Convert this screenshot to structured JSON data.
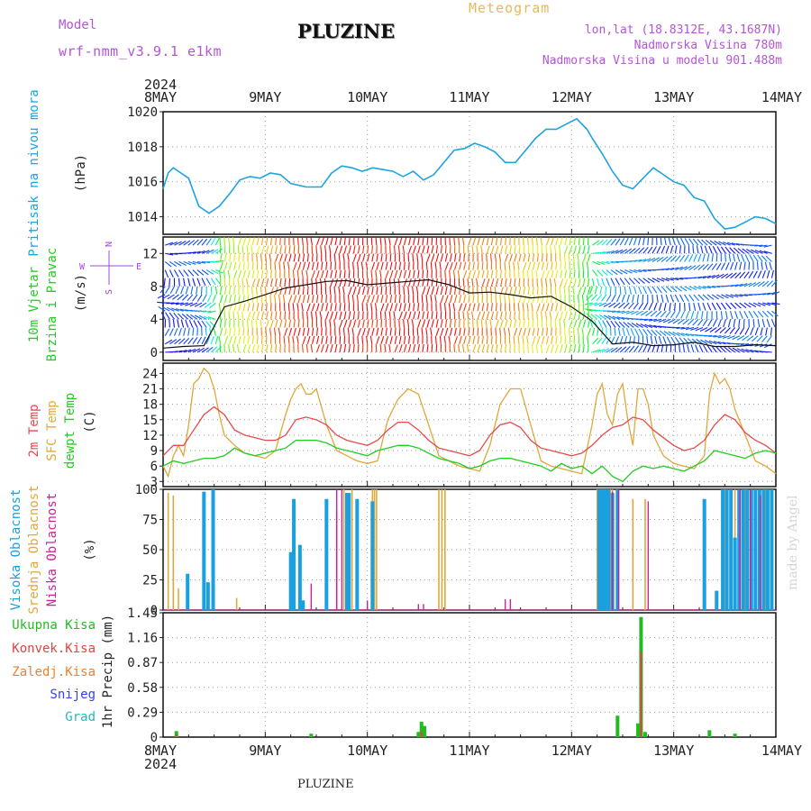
{
  "header": {
    "model_label": "Model",
    "model_value": "wrf-nmm_v3.9.1  e1km",
    "station": "PLUZINE",
    "meteogram": "Meteogram",
    "coords": "lon,lat (18.8312E, 43.1687N)",
    "elev": "Nadmorska Visina 780m",
    "elev_model": "Nadmorska Visina u modelu 901.488m",
    "footer_station": "PLUZINE",
    "watermark": "made by Angel"
  },
  "colors": {
    "pressure": "#1ca3e0",
    "wind_label": "#22cc22",
    "dir_label": "#aa44dd",
    "temp2m": "#e84a4a",
    "sfc": "#e0a83a",
    "dew": "#22cc22",
    "high": "#1a9fe0",
    "mid": "#e0a83a",
    "low": "#cc2299",
    "total": "#22bb22",
    "conv": "#e84040",
    "frozen": "#ef8030",
    "snow": "#3344ee",
    "hail": "#22bbbb"
  },
  "chart_data": {
    "type": "line",
    "time_axis": {
      "year": "2024",
      "ticks": [
        "8MAY",
        "9MAY",
        "10MAY",
        "11MAY",
        "12MAY",
        "13MAY",
        "14MAY"
      ]
    },
    "panels": [
      {
        "id": "pressure",
        "ylabel_lines": [
          "Pritisak na nivou mora"
        ],
        "unit": "(hPa)",
        "ylim": [
          1013,
          1020
        ],
        "yticks": [
          1014,
          1016,
          1018,
          1020
        ],
        "series": [
          {
            "name": "Pritisak",
            "x": [
              0,
              0.05,
              0.1,
              0.15,
              0.25,
              0.35,
              0.45,
              0.55,
              0.65,
              0.75,
              0.85,
              0.95,
              1.05,
              1.15,
              1.25,
              1.4,
              1.55,
              1.65,
              1.75,
              1.85,
              1.95,
              2.05,
              2.15,
              2.25,
              2.35,
              2.45,
              2.55,
              2.65,
              2.75,
              2.85,
              2.95,
              3.05,
              3.15,
              3.25,
              3.35,
              3.45,
              3.55,
              3.65,
              3.75,
              3.85,
              3.95,
              4.05,
              4.15,
              4.2,
              4.3,
              4.4,
              4.5,
              4.6,
              4.7,
              4.8,
              4.9,
              5.0,
              5.1,
              5.2,
              5.3,
              5.4,
              5.5,
              5.6,
              5.7,
              5.8,
              5.9,
              6.0
            ],
            "values": [
              1015.6,
              1016.5,
              1016.8,
              1016.6,
              1016.2,
              1014.6,
              1014.2,
              1014.6,
              1015.3,
              1016.1,
              1016.3,
              1016.2,
              1016.5,
              1016.4,
              1015.9,
              1015.7,
              1015.7,
              1016.5,
              1016.9,
              1016.8,
              1016.6,
              1016.8,
              1016.7,
              1016.6,
              1016.3,
              1016.6,
              1016.1,
              1016.4,
              1017.1,
              1017.8,
              1017.9,
              1018.2,
              1018.0,
              1017.7,
              1017.1,
              1017.1,
              1017.8,
              1018.5,
              1019.0,
              1019.0,
              1019.3,
              1019.6,
              1019.0,
              1018.5,
              1017.6,
              1016.6,
              1015.8,
              1015.6,
              1016.2,
              1016.8,
              1016.4,
              1016.0,
              1015.8,
              1015.1,
              1014.9,
              1013.9,
              1013.3,
              1013.4,
              1013.7,
              1014.0,
              1013.9,
              1013.6
            ]
          }
        ]
      },
      {
        "id": "wind",
        "ylabel_lines": [
          "10m Vjetar",
          "Brzina i Pravac"
        ],
        "unit": "(m/s)",
        "ylim": [
          -1,
          14
        ],
        "yticks": [
          0,
          4,
          8,
          12
        ],
        "compass": {
          "n": "N",
          "s": "S",
          "w": "W",
          "e": "E"
        },
        "series": [
          {
            "name": "Brzina",
            "x": [
              0,
              0.2,
              0.4,
              0.6,
              0.8,
              1.0,
              1.2,
              1.4,
              1.6,
              1.8,
              2.0,
              2.2,
              2.4,
              2.6,
              2.8,
              3.0,
              3.2,
              3.4,
              3.6,
              3.8,
              4.0,
              4.2,
              4.4,
              4.6,
              4.8,
              5.0,
              5.2,
              5.4,
              5.6,
              5.8,
              6.0
            ],
            "values": [
              0.5,
              0.7,
              0.8,
              5.5,
              6.2,
              7.0,
              7.8,
              8.2,
              8.6,
              8.7,
              8.2,
              8.4,
              8.6,
              8.8,
              8.2,
              7.2,
              7.3,
              7.0,
              6.6,
              6.8,
              5.5,
              3.8,
              1.0,
              1.2,
              0.8,
              0.9,
              1.2,
              0.7,
              0.7,
              0.9,
              0.8
            ]
          }
        ]
      },
      {
        "id": "temp",
        "ylabel_lines": [
          "2m Temp",
          "SFC Temp",
          "dewpt Temp"
        ],
        "unit": "(C)",
        "ylim": [
          2,
          26
        ],
        "yticks": [
          3,
          6,
          9,
          12,
          15,
          18,
          21,
          24
        ],
        "series": [
          {
            "name": "2m Temp",
            "x": [
              0,
              0.1,
              0.2,
              0.3,
              0.4,
              0.5,
              0.6,
              0.7,
              0.8,
              0.9,
              1.0,
              1.1,
              1.2,
              1.3,
              1.4,
              1.5,
              1.6,
              1.7,
              1.8,
              1.9,
              2.0,
              2.1,
              2.2,
              2.3,
              2.4,
              2.5,
              2.6,
              2.7,
              2.8,
              2.9,
              3.0,
              3.1,
              3.2,
              3.3,
              3.4,
              3.5,
              3.6,
              3.7,
              3.8,
              3.9,
              4.0,
              4.1,
              4.2,
              4.3,
              4.4,
              4.5,
              4.6,
              4.7,
              4.8,
              4.9,
              5.0,
              5.1,
              5.2,
              5.3,
              5.4,
              5.5,
              5.6,
              5.7,
              5.8,
              5.9,
              6.0
            ],
            "values": [
              8,
              10,
              10,
              13,
              16,
              17.5,
              16,
              13,
              12,
              11.5,
              11,
              11,
              12,
              15,
              15.5,
              15,
              14,
              12,
              11,
              10.5,
              10,
              11,
              13,
              14.5,
              14.5,
              13,
              11,
              9.5,
              9,
              8.5,
              8,
              9,
              12,
              14,
              14.5,
              13.5,
              11,
              9.5,
              9,
              8.5,
              8,
              8.5,
              10,
              12,
              13.5,
              14,
              15.5,
              15,
              13,
              11.5,
              10,
              9,
              9.5,
              11,
              14,
              16,
              15,
              12.5,
              11,
              10,
              8.5
            ]
          },
          {
            "name": "SFC Temp",
            "x": [
              0,
              0.05,
              0.1,
              0.15,
              0.2,
              0.25,
              0.3,
              0.35,
              0.4,
              0.45,
              0.5,
              0.55,
              0.6,
              0.7,
              0.8,
              0.9,
              1.0,
              1.1,
              1.2,
              1.25,
              1.3,
              1.35,
              1.4,
              1.45,
              1.5,
              1.6,
              1.7,
              1.8,
              1.9,
              2.0,
              2.1,
              2.2,
              2.3,
              2.4,
              2.5,
              2.6,
              2.7,
              2.8,
              2.9,
              3.0,
              3.1,
              3.2,
              3.3,
              3.4,
              3.5,
              3.6,
              3.7,
              3.8,
              3.9,
              4.0,
              4.1,
              4.2,
              4.25,
              4.3,
              4.35,
              4.4,
              4.45,
              4.5,
              4.55,
              4.6,
              4.65,
              4.7,
              4.75,
              4.8,
              4.9,
              5.0,
              5.1,
              5.2,
              5.3,
              5.35,
              5.4,
              5.45,
              5.5,
              5.55,
              5.6,
              5.7,
              5.8,
              5.9,
              6.0
            ],
            "values": [
              6,
              4,
              8,
              10,
              8,
              14,
              22,
              23,
              25,
              24,
              21,
              16,
              12,
              10,
              8.5,
              8,
              7.5,
              9,
              16,
              19,
              21,
              22,
              20,
              20,
              21,
              14,
              9,
              8,
              7,
              6.5,
              7,
              15,
              19,
              21,
              20,
              14,
              8,
              7,
              6,
              5.5,
              5,
              10,
              18,
              21,
              21,
              14,
              7,
              6,
              5.5,
              5,
              4.5,
              14,
              20,
              22,
              16,
              14,
              20,
              22,
              15,
              10,
              21,
              21,
              18,
              12,
              8,
              6.5,
              6,
              5.5,
              8,
              20,
              24,
              22,
              23,
              21,
              17,
              12,
              7,
              6,
              4.5
            ]
          },
          {
            "name": "dewpt Temp",
            "x": [
              0,
              0.1,
              0.2,
              0.3,
              0.4,
              0.5,
              0.6,
              0.7,
              0.8,
              0.9,
              1.0,
              1.1,
              1.2,
              1.3,
              1.4,
              1.5,
              1.6,
              1.7,
              1.8,
              1.9,
              2.0,
              2.1,
              2.2,
              2.3,
              2.4,
              2.5,
              2.6,
              2.7,
              2.8,
              2.9,
              3.0,
              3.1,
              3.2,
              3.3,
              3.4,
              3.5,
              3.6,
              3.7,
              3.8,
              3.9,
              4.0,
              4.1,
              4.2,
              4.3,
              4.4,
              4.5,
              4.6,
              4.7,
              4.8,
              4.9,
              5.0,
              5.1,
              5.2,
              5.3,
              5.4,
              5.5,
              5.6,
              5.7,
              5.8,
              5.9,
              6.0
            ],
            "values": [
              6,
              7,
              6.5,
              7,
              7.5,
              7.5,
              8,
              9.5,
              8.5,
              8,
              8.5,
              9,
              9.5,
              11,
              11,
              11,
              10.5,
              9.5,
              9,
              8.5,
              8,
              9,
              9.5,
              10,
              10,
              9.5,
              8.5,
              7.5,
              7,
              6.5,
              5.5,
              6,
              7,
              7.5,
              7.5,
              7,
              6.5,
              6,
              5,
              6.5,
              5.5,
              6,
              4.5,
              6,
              4,
              3,
              5,
              6,
              5.5,
              6,
              5.5,
              5,
              6,
              7,
              9,
              8.5,
              8,
              7.5,
              8.5,
              9,
              8.5
            ]
          }
        ]
      },
      {
        "id": "clouds",
        "ylabel_lines": [
          "Visoka Oblacnost",
          "Srednja Oblacnost",
          "Niska Oblacnost"
        ],
        "unit": "(%)",
        "ylim": [
          0,
          100
        ],
        "yticks": [
          0,
          25,
          50,
          75,
          100
        ],
        "series": [
          {
            "name": "Visoka Oblacnost",
            "x": [
              0.24,
              0.4,
              0.44,
              0.49,
              1.25,
              1.28,
              1.34,
              1.37,
              1.6,
              1.8,
              1.82,
              1.9,
              2.05,
              4.27,
              4.3,
              4.33,
              4.36,
              4.4,
              4.45,
              5.3,
              5.42,
              5.48,
              5.52,
              5.56,
              5.6,
              5.64,
              5.68,
              5.72,
              5.76,
              5.8,
              5.84,
              5.88,
              5.92,
              5.96
            ],
            "values": [
              30,
              98,
              23,
              100,
              48,
              92,
              54,
              8,
              92,
              97,
              97,
              92,
              90,
              100,
              100,
              100,
              100,
              97,
              100,
              92,
              16,
              100,
              100,
              100,
              60,
              100,
              100,
              100,
              100,
              100,
              100,
              100,
              100,
              100
            ]
          },
          {
            "name": "Srednja Oblacnost",
            "x": [
              0.05,
              0.1,
              0.15,
              0.72,
              1.7,
              1.77,
              1.85,
              2.05,
              2.07,
              2.09,
              2.7,
              2.73,
              2.76,
              4.25,
              4.3,
              4.35,
              4.38,
              4.4,
              4.6,
              4.72,
              5.5,
              5.6,
              5.7,
              5.9
            ],
            "values": [
              97,
              95,
              18,
              10,
              82,
              100,
              100,
              100,
              100,
              100,
              100,
              100,
              100,
              100,
              100,
              100,
              100,
              100,
              92,
              92,
              100,
              100,
              100,
              100
            ]
          },
          {
            "name": "Niska Oblacnost",
            "x": [
              1.45,
              1.7,
              1.75,
              2.0,
              2.5,
              2.55,
              3.35,
              3.4,
              4.4,
              4.46,
              4.75,
              5.65,
              5.75,
              5.85
            ],
            "values": [
              22,
              100,
              100,
              8,
              5,
              5,
              9,
              9,
              98,
              100,
              90,
              100,
              100,
              95
            ]
          }
        ]
      },
      {
        "id": "precip",
        "ylabel_lines": [
          "1hr Precip (mm)"
        ],
        "unit": "(mm)",
        "ylim": [
          0,
          1.45
        ],
        "yticks": [
          0,
          0.29,
          0.58,
          0.87,
          1.16,
          1.45
        ],
        "ytick_labels": [
          "0",
          "0.29",
          "0.58",
          "0.87",
          "1.16",
          "1.45"
        ],
        "legend": [
          "Ukupna Kisa",
          "Konvek.Kisa",
          "Zaledj.Kisa",
          "Snijeg",
          "Grad"
        ],
        "series": [
          {
            "name": "Ukupna Kisa",
            "x": [
              0.13,
              1.45,
              2.5,
              2.53,
              2.56,
              4.45,
              4.65,
              4.68,
              4.72,
              5.35,
              5.6
            ],
            "values": [
              0.07,
              0.04,
              0.06,
              0.18,
              0.13,
              0.25,
              0.16,
              1.4,
              0.06,
              0.08,
              0.04
            ]
          },
          {
            "name": "Konvek.Kisa",
            "x": [
              0.13,
              2.53,
              4.68
            ],
            "values": [
              0.03,
              0.06,
              1.0
            ]
          }
        ]
      }
    ]
  }
}
